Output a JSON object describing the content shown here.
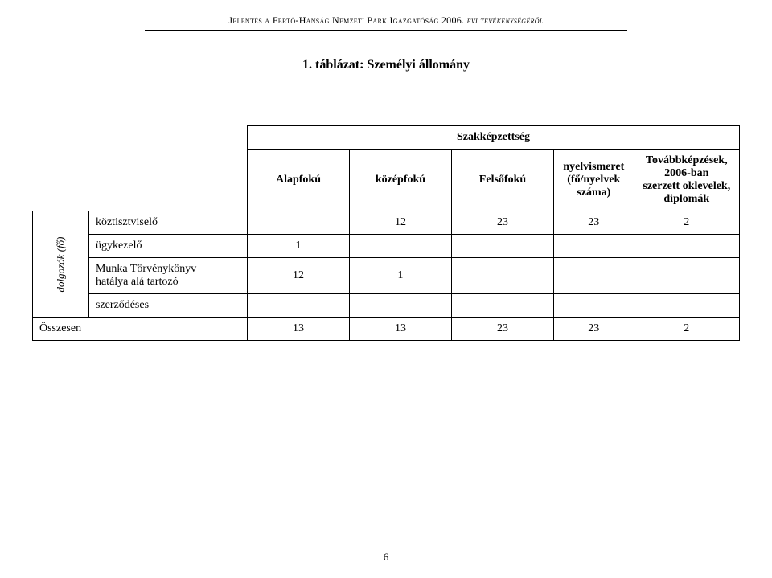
{
  "header": {
    "left": "Jelentés a Fertő-Hanság Nemzeti Park Igazgatóság 2006.",
    "right": "évi tevékenységéről"
  },
  "caption": "1. táblázat: Személyi állomány",
  "rotated_label": "dolgozók (fő)",
  "table": {
    "group_header": "Szakképzettség",
    "columns": {
      "alap": "Alapfokú",
      "kozep": "középfokú",
      "felso": "Felsőfokú",
      "nyelv_l1": "nyelvismeret",
      "nyelv_l2": "(fő/nyelvek száma)",
      "tovabb_l1": "Továbbképzések, 2006-ban",
      "tovabb_l2": "szerzett oklevelek, diplomák"
    },
    "rows": [
      {
        "label": "köztisztviselő",
        "alap": "",
        "kozep": "12",
        "felso": "23",
        "nyelv": "23",
        "tovabb": "2"
      },
      {
        "label": "ügykezelő",
        "alap": "1",
        "kozep": "",
        "felso": "",
        "nyelv": "",
        "tovabb": ""
      },
      {
        "label_l1": "Munka Törvénykönyv",
        "label_l2": "hatálya alá tartozó",
        "alap": "12",
        "kozep": "1",
        "felso": "",
        "nyelv": "",
        "tovabb": ""
      },
      {
        "label": "szerződéses",
        "alap": "",
        "kozep": "",
        "felso": "",
        "nyelv": "",
        "tovabb": ""
      }
    ],
    "total": {
      "label": "Összesen",
      "alap": "13",
      "kozep": "13",
      "felso": "23",
      "nyelv": "23",
      "tovabb": "2"
    }
  },
  "page_number": "6",
  "style": {
    "text_color": "#000000",
    "background_color": "#ffffff",
    "border_color": "#000000",
    "caption_fontsize": 16,
    "body_fontsize": 14,
    "header_fontsize": 12
  }
}
